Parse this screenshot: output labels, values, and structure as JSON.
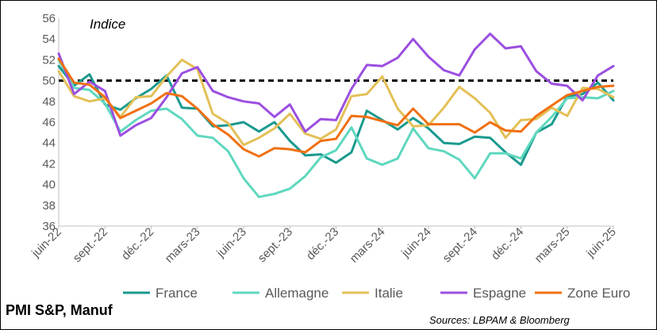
{
  "chart_data": {
    "type": "line",
    "title": "PMI S&P, Manuf",
    "ylabel": "Indice",
    "source": "Sources: LBPAM & Bloomberg",
    "ylim": [
      36,
      56
    ],
    "yticks": [
      "36",
      "38",
      "40",
      "42",
      "44",
      "46",
      "48",
      "50",
      "52",
      "54",
      "56"
    ],
    "x_tick_labels": [
      "juin-22",
      "sept.-22",
      "déc.-22",
      "mars-23",
      "juin-23",
      "sept.-23",
      "déc.-23",
      "mars-24",
      "juin-24",
      "sept.-24",
      "déc.-24",
      "mars-25",
      "juin-25"
    ],
    "reference_line": 50,
    "grid": false,
    "legend_position": "bottom",
    "x": [
      "2022-06",
      "2022-07",
      "2022-08",
      "2022-09",
      "2022-10",
      "2022-11",
      "2022-12",
      "2023-01",
      "2023-02",
      "2023-03",
      "2023-04",
      "2023-05",
      "2023-06",
      "2023-07",
      "2023-08",
      "2023-09",
      "2023-10",
      "2023-11",
      "2023-12",
      "2024-01",
      "2024-02",
      "2024-03",
      "2024-04",
      "2024-05",
      "2024-06",
      "2024-07",
      "2024-08",
      "2024-09",
      "2024-10",
      "2024-11",
      "2024-12",
      "2025-01",
      "2025-02",
      "2025-03",
      "2025-04",
      "2025-05",
      "2025-06"
    ],
    "series": [
      {
        "name": "France",
        "color": "#1a9a8e",
        "values": [
          51.4,
          49.5,
          50.6,
          47.7,
          47.2,
          48.3,
          49.2,
          50.5,
          47.4,
          47.3,
          45.6,
          45.7,
          46.0,
          45.1,
          46.0,
          44.2,
          42.8,
          42.9,
          42.1,
          43.1,
          47.1,
          46.2,
          45.3,
          46.4,
          45.4,
          44.0,
          43.9,
          44.6,
          44.5,
          43.1,
          41.9,
          45.0,
          45.8,
          48.5,
          48.7,
          49.8,
          48.1
        ]
      },
      {
        "name": "Allemagne",
        "color": "#5fd8bf",
        "values": [
          52.0,
          49.3,
          49.1,
          47.8,
          45.1,
          46.2,
          47.1,
          47.3,
          46.3,
          44.7,
          44.5,
          43.2,
          40.6,
          38.8,
          39.1,
          39.6,
          40.8,
          42.6,
          43.3,
          45.5,
          42.5,
          41.9,
          42.5,
          45.4,
          43.5,
          43.2,
          42.4,
          40.6,
          43.0,
          43.0,
          42.5,
          45.0,
          46.5,
          48.3,
          48.4,
          48.3,
          49.0
        ]
      },
      {
        "name": "Italie",
        "color": "#e3c057",
        "values": [
          50.9,
          48.5,
          48.0,
          48.3,
          46.5,
          48.4,
          48.5,
          50.4,
          52.0,
          51.1,
          46.8,
          45.9,
          43.8,
          44.5,
          45.4,
          46.8,
          44.9,
          44.4,
          45.3,
          48.5,
          48.7,
          50.4,
          47.3,
          45.6,
          45.7,
          47.4,
          49.4,
          48.3,
          46.9,
          44.5,
          46.2,
          46.3,
          47.4,
          46.6,
          49.3,
          49.2,
          48.4
        ]
      },
      {
        "name": "Espagne",
        "color": "#9b4fe0",
        "values": [
          52.6,
          48.7,
          49.9,
          49.0,
          44.7,
          45.7,
          46.4,
          48.4,
          50.7,
          51.3,
          49.0,
          48.4,
          48.0,
          47.8,
          46.5,
          47.7,
          45.1,
          46.3,
          46.2,
          49.2,
          51.5,
          51.4,
          52.2,
          54.0,
          52.3,
          51.0,
          50.5,
          53.0,
          54.5,
          53.1,
          53.3,
          50.9,
          49.7,
          49.5,
          48.1,
          50.5,
          51.4
        ]
      },
      {
        "name": "Zone Euro",
        "color": "#f07012",
        "values": [
          52.1,
          49.8,
          49.6,
          48.4,
          46.4,
          47.1,
          47.8,
          48.8,
          48.5,
          47.3,
          45.8,
          44.8,
          43.4,
          42.7,
          43.5,
          43.4,
          43.1,
          44.2,
          44.4,
          46.6,
          46.5,
          46.1,
          45.7,
          47.3,
          45.8,
          45.8,
          45.8,
          45.0,
          46.0,
          45.2,
          45.1,
          46.6,
          47.6,
          48.6,
          49.0,
          49.4,
          49.5
        ]
      }
    ]
  }
}
